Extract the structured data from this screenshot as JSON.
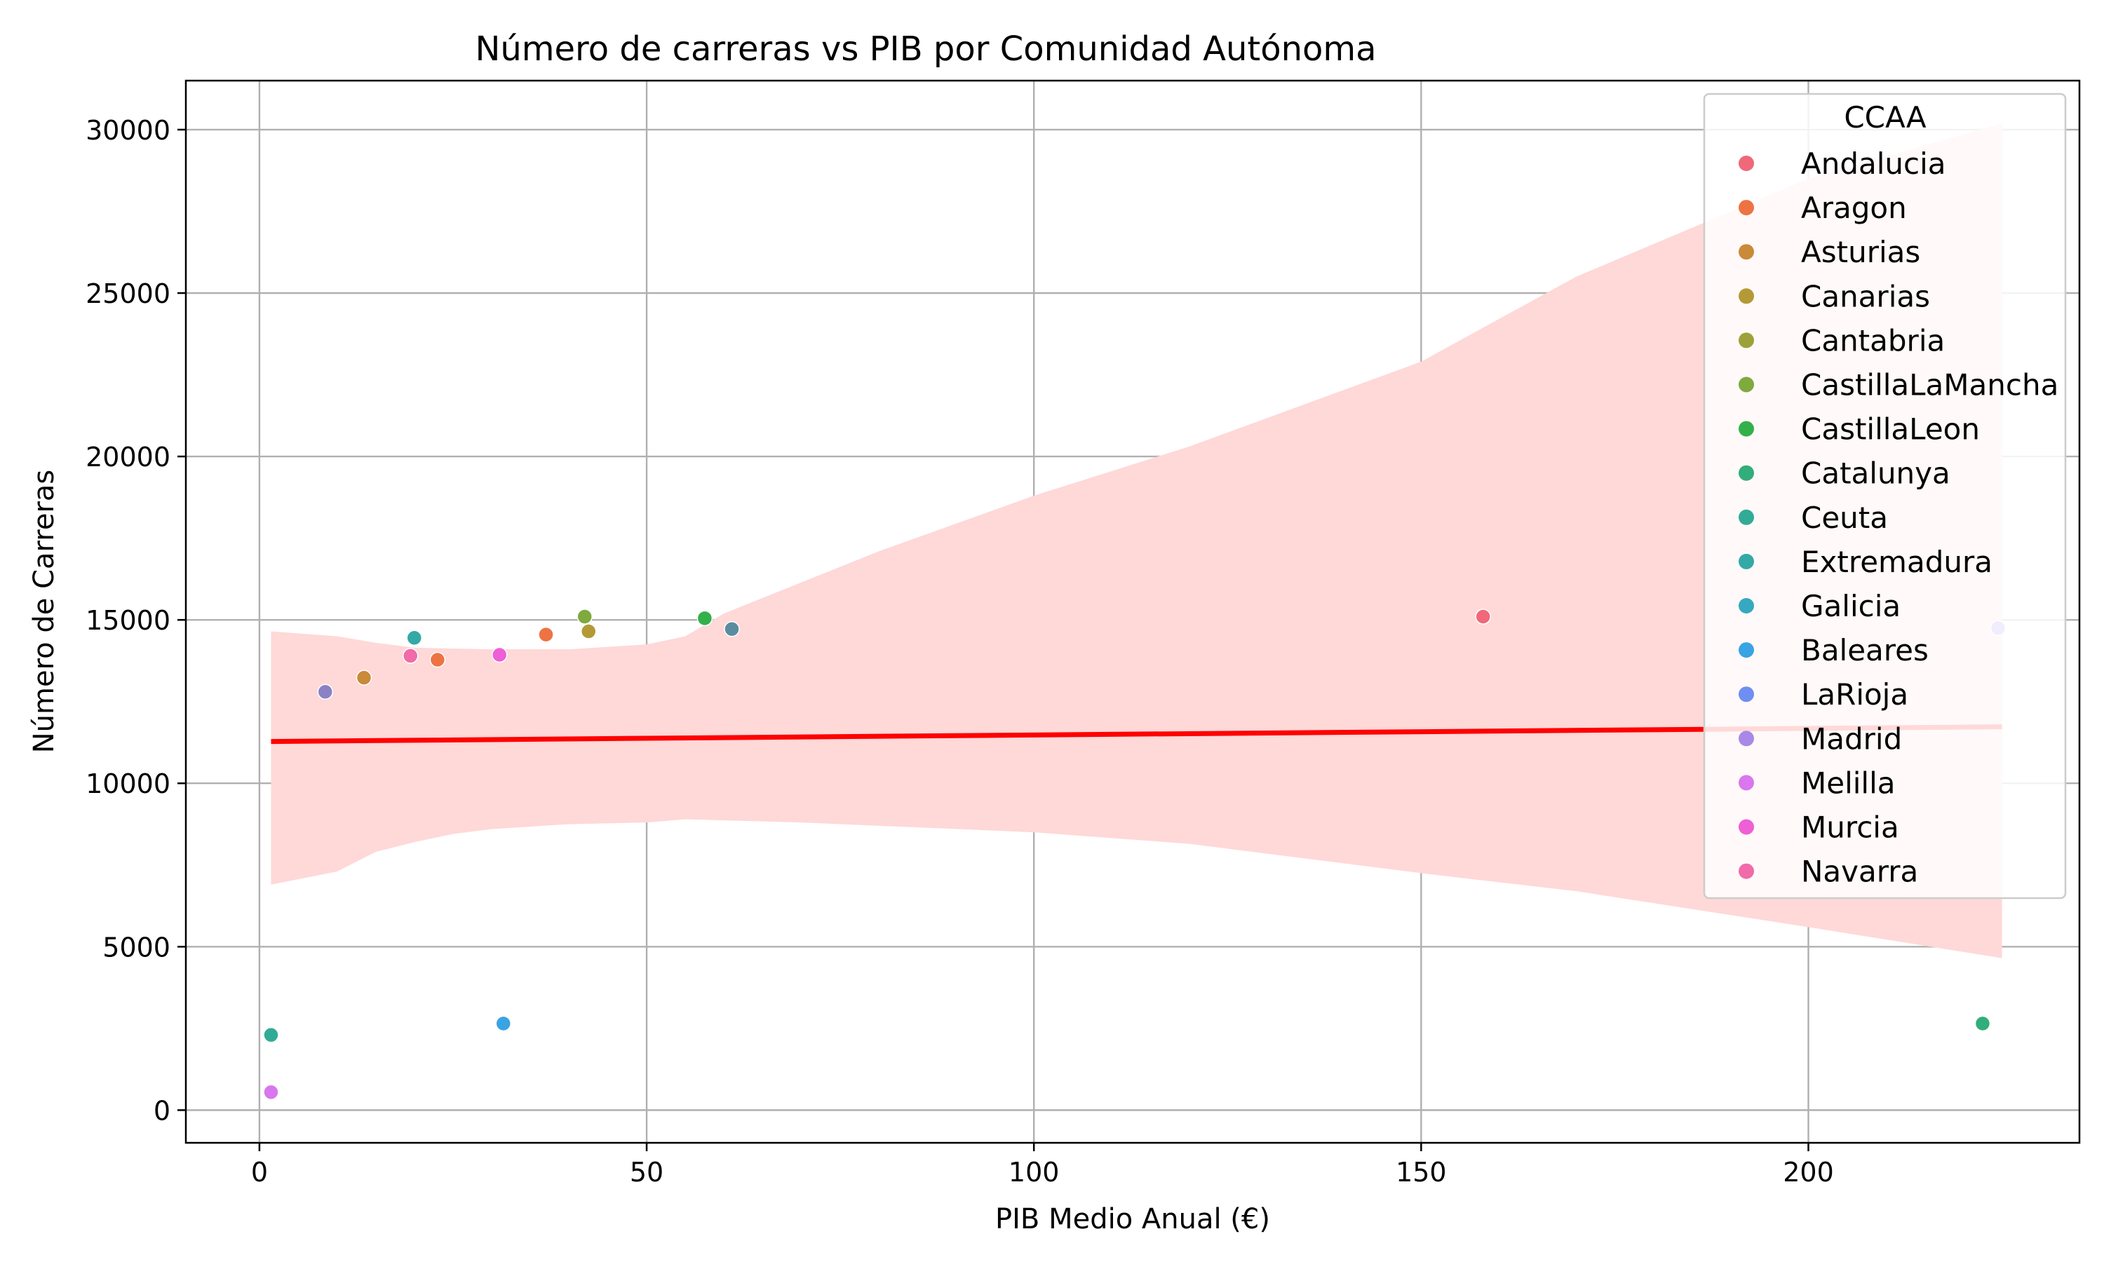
{
  "chart_data": {
    "type": "scatter",
    "title": "Número de carreras vs PIB por Comunidad Autónoma",
    "xlabel": "PIB Medio Anual (€)",
    "ylabel": "Número de Carreras",
    "xlim": [
      -9.5,
      235
    ],
    "ylim": [
      -1000,
      31500
    ],
    "xticks": [
      0,
      50,
      100,
      150,
      200
    ],
    "yticks": [
      0,
      5000,
      10000,
      15000,
      20000,
      25000,
      30000
    ],
    "grid": true,
    "legend": {
      "title": "CCAA",
      "placement": "upper-right"
    },
    "regression": {
      "color": "#ff0000",
      "band_color": "#ffd8d8",
      "x": [
        1.5,
        225
      ],
      "y": [
        11280,
        11730
      ],
      "ci_lower": [
        [
          1.5,
          6900
        ],
        [
          10,
          7300
        ],
        [
          15,
          7900
        ],
        [
          20,
          8200
        ],
        [
          25,
          8450
        ],
        [
          30,
          8600
        ],
        [
          40,
          8750
        ],
        [
          50,
          8800
        ],
        [
          55,
          8900
        ],
        [
          70,
          8800
        ],
        [
          100,
          8500
        ],
        [
          120,
          8150
        ],
        [
          150,
          7250
        ],
        [
          170,
          6700
        ],
        [
          200,
          5600
        ],
        [
          225,
          4650
        ]
      ],
      "ci_upper": [
        [
          1.5,
          14650
        ],
        [
          10,
          14500
        ],
        [
          15,
          14300
        ],
        [
          20,
          14150
        ],
        [
          30,
          14100
        ],
        [
          40,
          14100
        ],
        [
          50,
          14250
        ],
        [
          55,
          14500
        ],
        [
          60,
          15200
        ],
        [
          80,
          17100
        ],
        [
          100,
          18800
        ],
        [
          120,
          20300
        ],
        [
          150,
          22900
        ],
        [
          170,
          25500
        ],
        [
          200,
          28500
        ],
        [
          225,
          30200
        ]
      ]
    },
    "series": [
      {
        "name": "Andalucia",
        "color": "#f0687a",
        "points": [
          [
            158,
            15100
          ]
        ]
      },
      {
        "name": "Aragon",
        "color": "#ed7343",
        "points": [
          [
            37,
            14550
          ],
          [
            23,
            13780
          ]
        ]
      },
      {
        "name": "Asturias",
        "color": "#c98a3a",
        "points": [
          [
            13.5,
            13230
          ]
        ]
      },
      {
        "name": "Canarias",
        "color": "#b39a36",
        "points": [
          [
            42.5,
            14650
          ]
        ]
      },
      {
        "name": "Cantabria",
        "color": "#9ca13b",
        "points": []
      },
      {
        "name": "CastillaLaMancha",
        "color": "#7eaa3e",
        "points": [
          [
            42,
            15100
          ]
        ]
      },
      {
        "name": "CastillaLeon",
        "color": "#33b04a",
        "points": [
          [
            57.5,
            15050
          ]
        ]
      },
      {
        "name": "Catalunya",
        "color": "#32ad7b",
        "points": [
          [
            222.5,
            2650
          ]
        ]
      },
      {
        "name": "Ceuta",
        "color": "#32ab96",
        "points": [
          [
            1.5,
            2300
          ]
        ]
      },
      {
        "name": "Extremadura",
        "color": "#34a9a6",
        "points": [
          [
            20,
            14450
          ]
        ]
      },
      {
        "name": "Galicia",
        "color": "#36a8bf",
        "points": []
      },
      {
        "name": "Baleares",
        "color": "#3aa3e3",
        "points": [
          [
            31.5,
            2650
          ]
        ]
      },
      {
        "name": "LaRioja",
        "color": "#6f8ef2",
        "points": []
      },
      {
        "name": "Madrid",
        "color": "#a889e8",
        "points": [
          [
            224.5,
            14750
          ]
        ]
      },
      {
        "name": "Melilla",
        "color": "#d977ee",
        "points": [
          [
            1.5,
            550
          ]
        ]
      },
      {
        "name": "Murcia",
        "color": "#ef5fd6",
        "points": [
          [
            31,
            13930
          ]
        ]
      },
      {
        "name": "Navarra",
        "color": "#f06ba8",
        "points": [
          [
            19.5,
            13900
          ]
        ]
      }
    ],
    "extra_points": [
      {
        "color": "#5a8ca0",
        "points": [
          [
            61,
            14720
          ]
        ]
      },
      {
        "color": "#8a82c4",
        "points": [
          [
            8.5,
            12800
          ]
        ]
      }
    ]
  }
}
